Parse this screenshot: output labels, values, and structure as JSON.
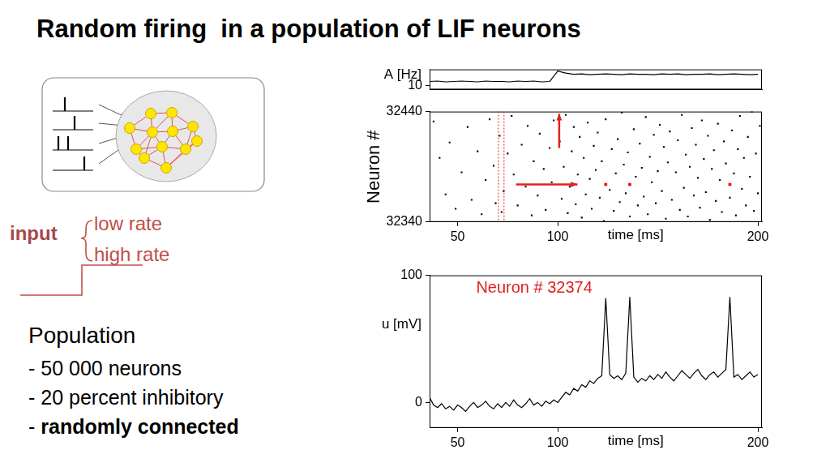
{
  "title": "Random firing  in a population of LIF neurons",
  "input": {
    "label": "input",
    "items": [
      "low rate",
      "high rate"
    ]
  },
  "population": {
    "heading": "Population",
    "items": [
      {
        "text": "- 50 000 neurons"
      },
      {
        "text": "- 20 percent inhibitory"
      },
      {
        "text": "- ",
        "strong": "randomly connected"
      }
    ]
  },
  "chart_data": [
    {
      "type": "line",
      "ylabel": "A [Hz]",
      "color": "#000000",
      "x": [
        36,
        40,
        44,
        48,
        52,
        56,
        60,
        64,
        68,
        72,
        76,
        80,
        84,
        88,
        92,
        96,
        100,
        104,
        108,
        112,
        116,
        120,
        124,
        128,
        132,
        136,
        140,
        144,
        148,
        152,
        156,
        160,
        164,
        168,
        172,
        176,
        180,
        184,
        188,
        192,
        196,
        200
      ],
      "values": [
        20,
        21,
        19,
        20,
        21,
        20,
        19,
        21,
        20,
        20,
        19,
        21,
        20,
        21,
        19,
        20,
        46,
        41,
        38,
        39,
        37,
        38,
        39,
        38,
        37,
        39,
        38,
        38,
        37,
        39,
        38,
        39,
        37,
        38,
        38,
        39,
        37,
        38,
        39,
        38,
        37,
        38
      ],
      "xlim": [
        36,
        202
      ],
      "ylim": [
        0,
        50
      ],
      "yticks": [
        10
      ],
      "tick_labels": "y",
      "grid": false
    },
    {
      "type": "scatter",
      "xlabel": "time [ms]",
      "ylabel": "Neuron #",
      "xlim": [
        36,
        202
      ],
      "ylim": [
        32340,
        32440
      ],
      "xticks": [
        50,
        100,
        200
      ],
      "yticks": [
        32340,
        32440
      ],
      "grid": false,
      "series": [
        {
          "color": "#000000",
          "x": [
            38,
            41,
            44,
            46,
            49,
            52,
            55,
            57,
            60,
            62,
            64,
            66,
            68,
            69,
            71,
            72,
            73,
            75,
            77,
            78,
            80,
            82,
            84,
            85,
            87,
            88,
            90,
            91,
            93,
            94,
            96,
            97,
            98,
            101,
            102,
            103,
            104,
            105,
            106,
            107,
            108,
            109,
            110,
            111,
            112,
            113,
            114,
            115,
            116,
            117,
            118,
            119,
            120,
            121,
            122,
            123,
            124,
            126,
            127,
            128,
            129,
            130,
            131,
            132,
            133,
            134,
            135,
            136,
            138,
            139,
            140,
            141,
            142,
            143,
            144,
            145,
            146,
            147,
            148,
            149,
            150,
            151,
            152,
            153,
            154,
            155,
            156,
            157,
            159,
            160,
            161,
            162,
            163,
            164,
            165,
            166,
            167,
            168,
            169,
            170,
            171,
            172,
            173,
            174,
            175,
            176,
            177,
            178,
            179,
            180,
            181,
            182,
            183,
            184,
            186,
            187,
            188,
            189,
            190,
            191,
            192,
            193,
            194,
            195,
            196,
            197,
            198,
            199,
            200,
            201
          ],
          "values": [
            32431,
            32398,
            32365,
            32412,
            32352,
            32385,
            32426,
            32360,
            32404,
            32347,
            32378,
            32433,
            32391,
            32357,
            32418,
            32349,
            32368,
            32402,
            32436,
            32383,
            32355,
            32410,
            32372,
            32427,
            32346,
            32395,
            32364,
            32420,
            32388,
            32351,
            32407,
            32376,
            32432,
            32413,
            32361,
            32390,
            32437,
            32348,
            32372,
            32404,
            32426,
            32356,
            32383,
            32417,
            32344,
            32398,
            32365,
            32430,
            32379,
            32352,
            32409,
            32387,
            32421,
            32362,
            32395,
            32341,
            32433,
            32369,
            32406,
            32350,
            32384,
            32415,
            32358,
            32439,
            32392,
            32366,
            32403,
            32345,
            32424,
            32381,
            32355,
            32411,
            32389,
            32363,
            32435,
            32347,
            32399,
            32376,
            32419,
            32357,
            32386,
            32428,
            32368,
            32408,
            32343,
            32394,
            32422,
            32360,
            32385,
            32414,
            32351,
            32437,
            32371,
            32401,
            32345,
            32390,
            32425,
            32364,
            32410,
            32380,
            32353,
            32432,
            32397,
            32367,
            32418,
            32342,
            32388,
            32405,
            32359,
            32429,
            32378,
            32349,
            32413,
            32393,
            32362,
            32423,
            32384,
            32346,
            32406,
            32436,
            32370,
            32398,
            32355,
            32417,
            32381,
            32440,
            32350,
            32402,
            32366,
            32427
          ]
        },
        {
          "color": "#ff0000",
          "x": [
            124,
            136,
            186
          ],
          "values": [
            32374,
            32374,
            32374
          ]
        }
      ]
    },
    {
      "type": "line",
      "title": "Neuron # 32374",
      "xlabel": "time [ms]",
      "ylabel": "u [mV]",
      "color": "#000000",
      "x": [
        36,
        38,
        40,
        42,
        44,
        46,
        48,
        50,
        52,
        54,
        56,
        58,
        60,
        62,
        64,
        66,
        68,
        70,
        72,
        74,
        76,
        78,
        80,
        82,
        84,
        86,
        88,
        90,
        92,
        94,
        96,
        98,
        100,
        102,
        104,
        106,
        108,
        110,
        112,
        114,
        116,
        118,
        120,
        122,
        124,
        126,
        128,
        130,
        132,
        134,
        136,
        138,
        140,
        142,
        144,
        146,
        148,
        150,
        152,
        154,
        156,
        158,
        160,
        162,
        164,
        166,
        168,
        170,
        172,
        174,
        176,
        178,
        180,
        182,
        184,
        186,
        188,
        190,
        192,
        194,
        196,
        198,
        200
      ],
      "values": [
        4,
        -2,
        -4,
        -1,
        -5,
        -3,
        -6,
        -2,
        -4,
        -7,
        -3,
        0,
        -4,
        -2,
        1,
        -3,
        -5,
        -1,
        -4,
        0,
        -3,
        2,
        -2,
        -4,
        -1,
        3,
        -2,
        0,
        -3,
        1,
        -1,
        2,
        0,
        4,
        8,
        6,
        11,
        9,
        14,
        12,
        17,
        15,
        19,
        21,
        82,
        22,
        19,
        21,
        18,
        23,
        83,
        20,
        16,
        19,
        17,
        21,
        18,
        22,
        19,
        24,
        20,
        17,
        21,
        25,
        22,
        19,
        23,
        26,
        21,
        18,
        22,
        24,
        20,
        23,
        26,
        83,
        20,
        22,
        18,
        21,
        24,
        20,
        22
      ],
      "xlim": [
        36,
        202
      ],
      "ylim": [
        -20,
        100
      ],
      "xticks": [
        50,
        100,
        200
      ],
      "yticks": [
        0,
        100
      ],
      "grid": false
    }
  ]
}
